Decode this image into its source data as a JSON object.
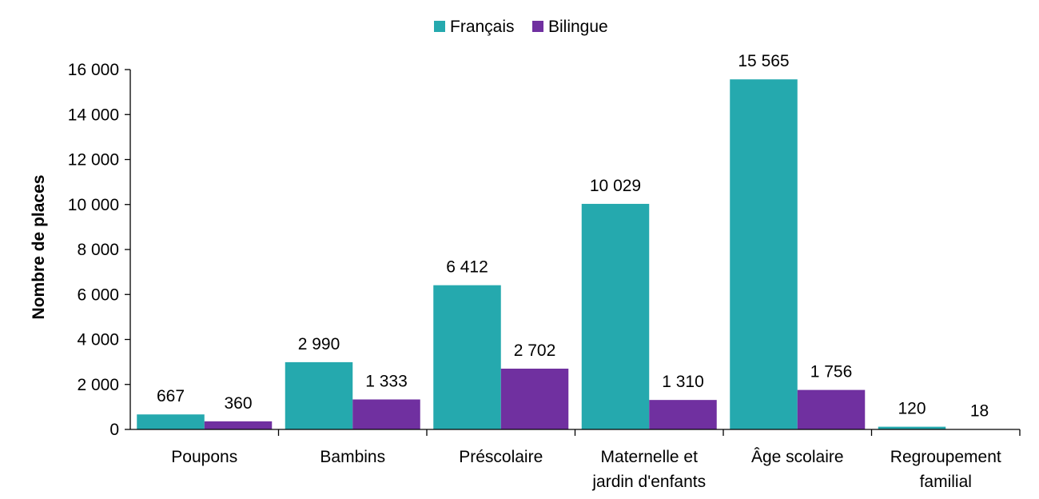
{
  "chart_data": {
    "type": "bar",
    "title": "",
    "xlabel": "",
    "ylabel": "Nombre de places",
    "ylim": [
      0,
      16000
    ],
    "ytick_values": [
      0,
      2000,
      4000,
      6000,
      8000,
      10000,
      12000,
      14000,
      16000
    ],
    "ytick_labels": [
      "0",
      "2 000",
      "4 000",
      "6 000",
      "8 000",
      "10 000",
      "12 000",
      "14 000",
      "16 000"
    ],
    "grid": false,
    "legend_position": "top-center",
    "categories": [
      [
        "Poupons"
      ],
      [
        "Bambins"
      ],
      [
        "Préscolaire"
      ],
      [
        "Maternelle et",
        "jardin d'enfants"
      ],
      [
        "Âge scolaire"
      ],
      [
        "Regroupement",
        "familial"
      ]
    ],
    "series": [
      {
        "name": "Français",
        "color": "#25A9AE",
        "values": [
          667,
          2990,
          6412,
          10029,
          15565,
          120
        ],
        "labels": [
          "667",
          "2 990",
          "6 412",
          "10 029",
          "15 565",
          "120"
        ]
      },
      {
        "name": "Bilingue",
        "color": "#7030A0",
        "values": [
          360,
          1333,
          2702,
          1310,
          1756,
          18
        ],
        "labels": [
          "360",
          "1 333",
          "2 702",
          "1 310",
          "1 756",
          "18"
        ]
      }
    ]
  }
}
